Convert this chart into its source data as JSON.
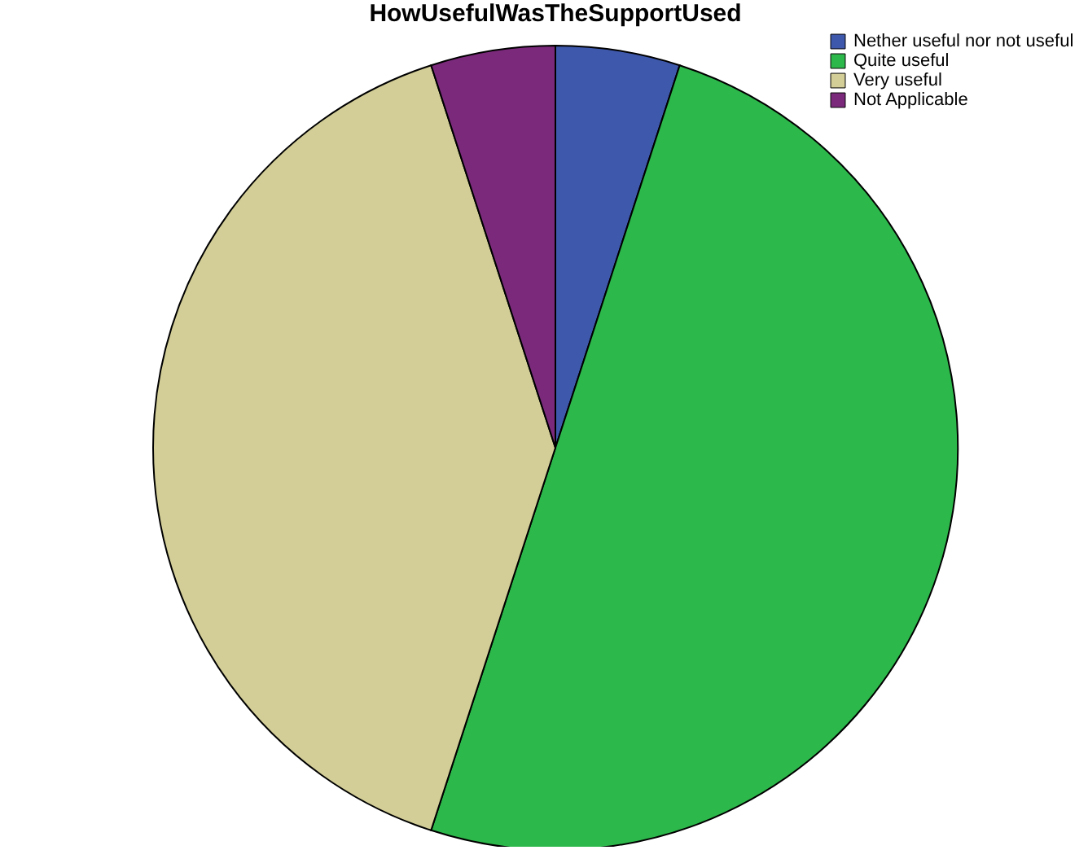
{
  "chart_data": {
    "type": "pie",
    "title": "HowUsefulWasTheSupportUsed",
    "categories": [
      "Nether useful nor not useful",
      "Quite useful",
      "Very useful",
      "Not Applicable"
    ],
    "values": [
      5,
      50,
      40,
      5
    ],
    "colors": [
      "#3e58ac",
      "#2db84b",
      "#d3ce97",
      "#7b2a7b"
    ],
    "legend": "top right"
  }
}
